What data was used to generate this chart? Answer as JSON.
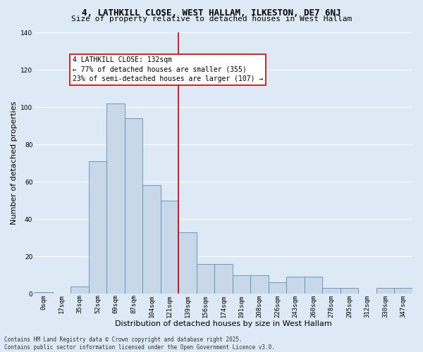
{
  "title": "4, LATHKILL CLOSE, WEST HALLAM, ILKESTON, DE7 6NJ",
  "subtitle": "Size of property relative to detached houses in West Hallam",
  "xlabel": "Distribution of detached houses by size in West Hallam",
  "ylabel": "Number of detached properties",
  "bin_labels": [
    "0sqm",
    "17sqm",
    "35sqm",
    "52sqm",
    "69sqm",
    "87sqm",
    "104sqm",
    "121sqm",
    "139sqm",
    "156sqm",
    "174sqm",
    "191sqm",
    "208sqm",
    "226sqm",
    "243sqm",
    "260sqm",
    "278sqm",
    "295sqm",
    "312sqm",
    "330sqm",
    "347sqm"
  ],
  "bar_heights": [
    1,
    0,
    4,
    71,
    102,
    94,
    58,
    50,
    33,
    16,
    16,
    10,
    10,
    6,
    9,
    9,
    3,
    3,
    0,
    3,
    3
  ],
  "bar_color": "#c8d8e8",
  "bar_edge_color": "#5b8fb9",
  "vline_color": "#cc0000",
  "annotation_text": "4 LATHKILL CLOSE: 132sqm\n← 77% of detached houses are smaller (355)\n23% of semi-detached houses are larger (107) →",
  "annotation_box_color": "#cc0000",
  "ylim": [
    0,
    140
  ],
  "yticks": [
    0,
    20,
    40,
    60,
    80,
    100,
    120,
    140
  ],
  "footnote": "Contains HM Land Registry data © Crown copyright and database right 2025.\nContains public sector information licensed under the Open Government Licence v3.0.",
  "bg_color": "#dde9f5",
  "grid_color": "#ffffff",
  "title_fontsize": 9,
  "subtitle_fontsize": 8,
  "label_fontsize": 8,
  "tick_fontsize": 6.5,
  "annot_fontsize": 7,
  "footnote_fontsize": 5.5
}
